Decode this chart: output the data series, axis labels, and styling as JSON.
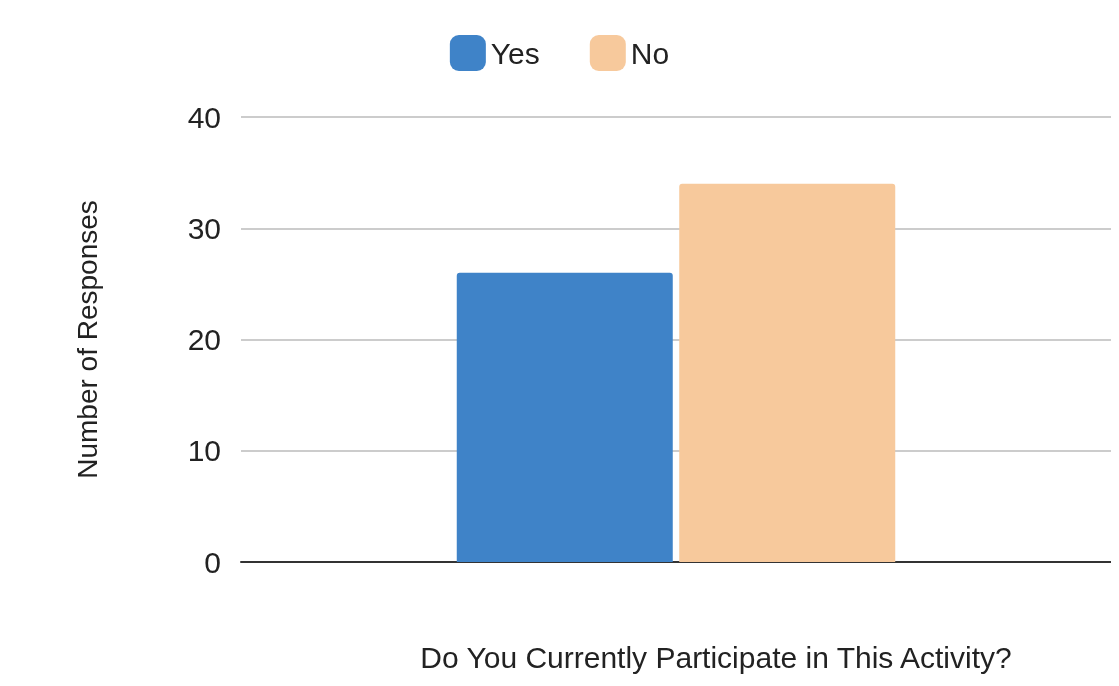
{
  "chart_data": {
    "type": "bar",
    "xlabel": "Do You Currently Participate in This Activity?",
    "ylabel": "Number of Responses",
    "categories": [
      null
    ],
    "series": [
      {
        "name": "Yes",
        "color": "#3f83c8",
        "values": [
          26
        ]
      },
      {
        "name": "No",
        "color": "#f7c99c",
        "values": [
          34
        ]
      }
    ],
    "ylim": [
      0,
      40
    ],
    "yticks": [
      0,
      10,
      20,
      30,
      40
    ],
    "grid": "y",
    "legend": "top"
  }
}
